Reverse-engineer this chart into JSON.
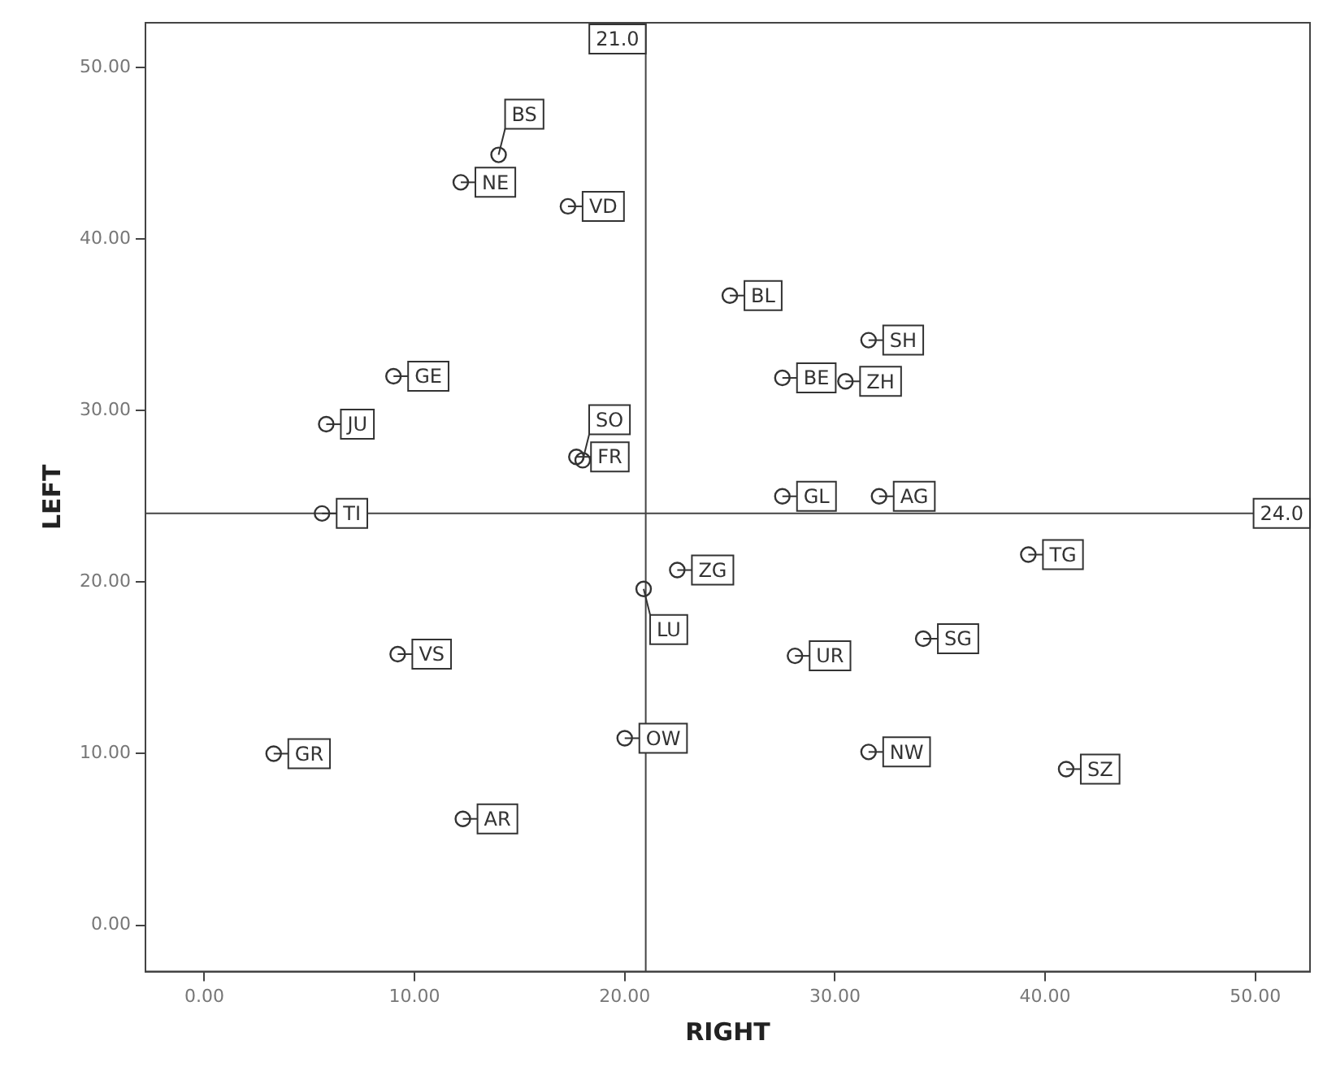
{
  "chart_data": {
    "type": "scatter",
    "xlabel": "RIGHT",
    "ylabel": "LEFT",
    "x": [
      12.2,
      14.0,
      17.3,
      9.0,
      5.8,
      17.7,
      18.0,
      5.6,
      25.0,
      31.6,
      27.5,
      30.5,
      27.5,
      32.1,
      22.5,
      20.9,
      9.2,
      3.3,
      20.0,
      12.3,
      39.2,
      28.1,
      34.2,
      31.6,
      41.0
    ],
    "values": [
      43.3,
      44.9,
      41.9,
      32.0,
      29.2,
      27.3,
      27.1,
      24.0,
      36.7,
      34.1,
      31.9,
      31.7,
      25.0,
      25.0,
      20.7,
      19.6,
      15.8,
      10.0,
      10.9,
      6.2,
      21.6,
      15.7,
      16.7,
      10.1,
      9.1
    ],
    "color": "#333333",
    "marker": "circle",
    "grid": false,
    "legend": false,
    "xlim": [
      -2.8,
      52.6
    ],
    "ylim": [
      -2.7,
      52.6
    ],
    "xticks": [
      {
        "value": 0,
        "label": "0.00"
      },
      {
        "value": 10,
        "label": "10.00"
      },
      {
        "value": 20,
        "label": "20.00"
      },
      {
        "value": 30,
        "label": "30.00"
      },
      {
        "value": 40,
        "label": "40.00"
      },
      {
        "value": 50,
        "label": "50.00"
      }
    ],
    "yticks": [
      {
        "value": 0,
        "label": "0.00"
      },
      {
        "value": 10,
        "label": "10.00"
      },
      {
        "value": 20,
        "label": "20.00"
      },
      {
        "value": 30,
        "label": "30.00"
      },
      {
        "value": 40,
        "label": "40.00"
      },
      {
        "value": 50,
        "label": "50.00"
      }
    ],
    "ref_lines": [
      {
        "axis": "x",
        "value": 21.0,
        "label": "21.0"
      },
      {
        "axis": "y",
        "value": 24.0,
        "label": "24.0"
      }
    ],
    "annotations": [
      {
        "text": "NE",
        "x": 12.2,
        "y": 43.3
      },
      {
        "text": "BS",
        "x": 14.0,
        "y": 44.9
      },
      {
        "text": "VD",
        "x": 17.3,
        "y": 41.9
      },
      {
        "text": "GE",
        "x": 9.0,
        "y": 32.0
      },
      {
        "text": "JU",
        "x": 5.8,
        "y": 29.2
      },
      {
        "text": "FR",
        "x": 17.7,
        "y": 27.3
      },
      {
        "text": "SO",
        "x": 18.0,
        "y": 27.1
      },
      {
        "text": "TI",
        "x": 5.6,
        "y": 24.0
      },
      {
        "text": "BL",
        "x": 25.0,
        "y": 36.7
      },
      {
        "text": "SH",
        "x": 31.6,
        "y": 34.1
      },
      {
        "text": "BE",
        "x": 27.5,
        "y": 31.9
      },
      {
        "text": "ZH",
        "x": 30.5,
        "y": 31.7
      },
      {
        "text": "GL",
        "x": 27.5,
        "y": 25.0
      },
      {
        "text": "AG",
        "x": 32.1,
        "y": 25.0
      },
      {
        "text": "ZG",
        "x": 22.5,
        "y": 20.7
      },
      {
        "text": "LU",
        "x": 20.9,
        "y": 19.6
      },
      {
        "text": "VS",
        "x": 9.2,
        "y": 15.8
      },
      {
        "text": "GR",
        "x": 3.3,
        "y": 10.0
      },
      {
        "text": "OW",
        "x": 20.0,
        "y": 10.9
      },
      {
        "text": "AR",
        "x": 12.3,
        "y": 6.2
      },
      {
        "text": "TG",
        "x": 39.2,
        "y": 21.6
      },
      {
        "text": "UR",
        "x": 28.1,
        "y": 15.7
      },
      {
        "text": "SG",
        "x": 34.2,
        "y": 16.7
      },
      {
        "text": "NW",
        "x": 31.6,
        "y": 10.1
      },
      {
        "text": "SZ",
        "x": 41.0,
        "y": 9.1
      }
    ]
  }
}
